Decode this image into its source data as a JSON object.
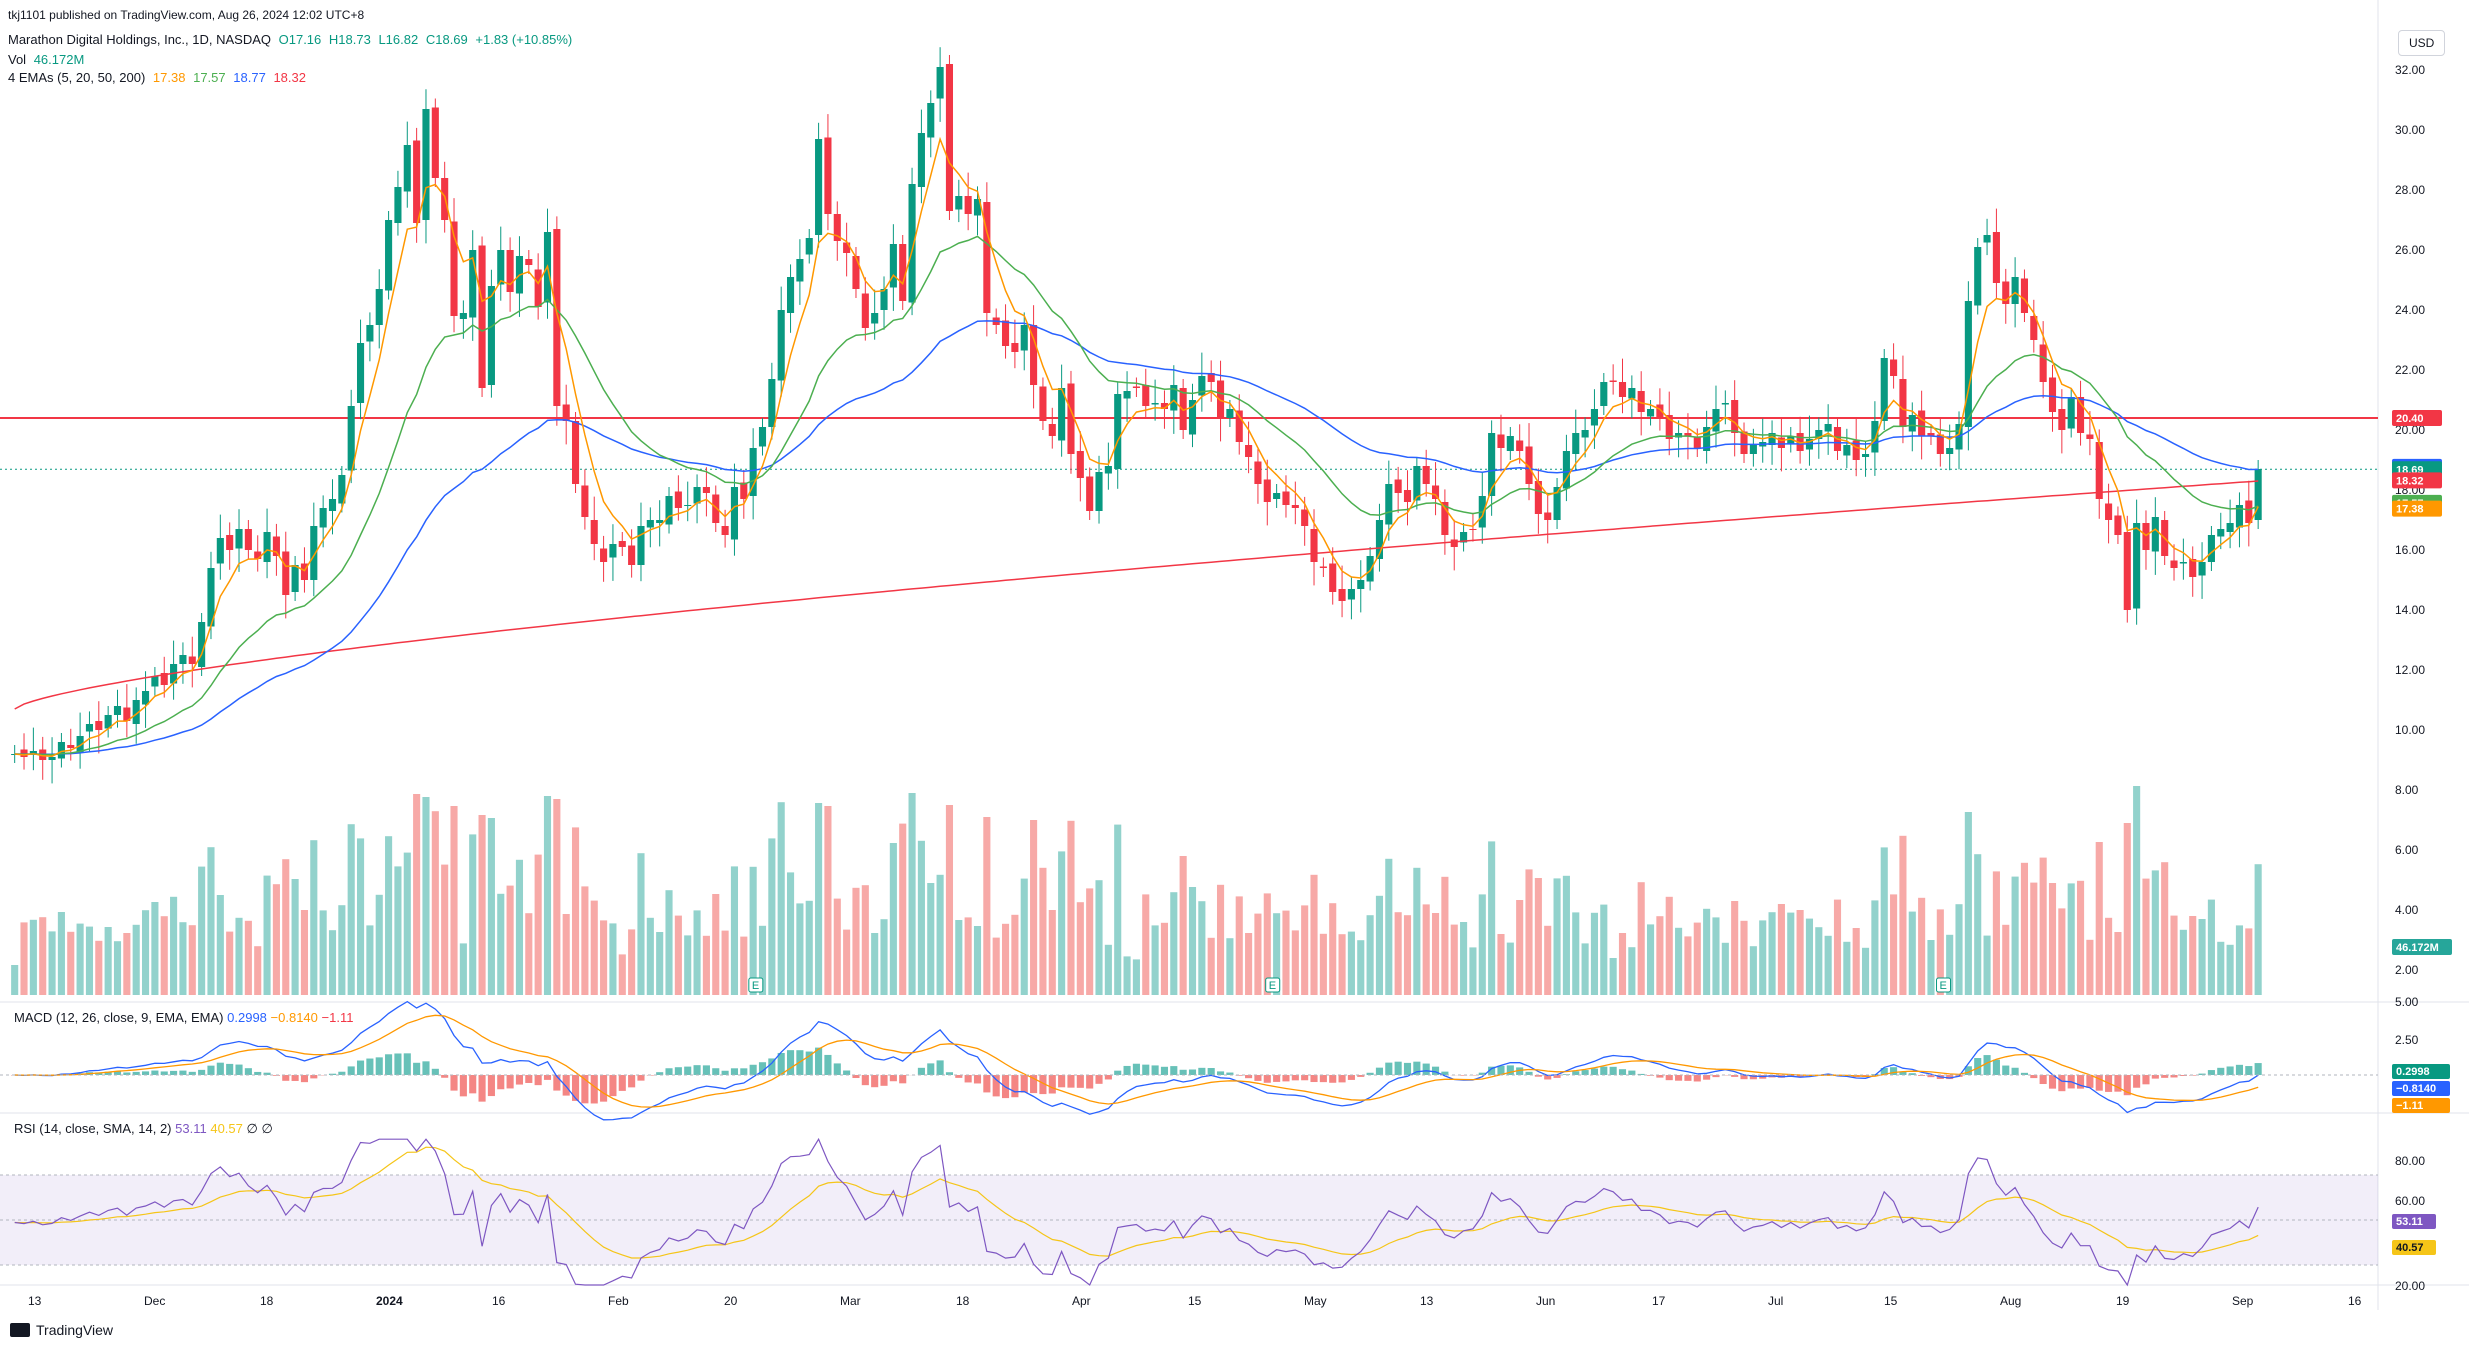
{
  "publish_line": "tkj1101 published on TradingView.com, Aug 26, 2024 12:02 UTC+8",
  "legend": {
    "symbol": "Marathon Digital Holdings, Inc., 1D, NASDAQ",
    "open": "O17.16",
    "high": "H18.73",
    "low": "L16.82",
    "close": "C18.69",
    "change": "+1.83 (+10.85%)",
    "vol_label": "Vol",
    "vol_value": "46.172M",
    "ema_label": "4 EMAs (5, 20, 50, 200)",
    "ema_values": [
      "17.38",
      "17.57",
      "18.77",
      "18.32"
    ]
  },
  "macd": {
    "label": "MACD (12, 26, close, 9, EMA, EMA)",
    "values": [
      "0.2998",
      "−0.8140",
      "−1.11"
    ]
  },
  "rsi": {
    "label": "RSI (14, close, SMA, 14, 2)",
    "values": [
      "53.11",
      "40.57",
      "∅",
      "∅"
    ]
  },
  "currency": "USD",
  "footer": "TradingView",
  "colors": {
    "up": "#089981",
    "down": "#f23645",
    "ema5": "#ff9800",
    "ema20": "#4caf50",
    "ema50": "#2962ff",
    "ema200": "#f23645",
    "rsi": "#7e57c2",
    "rsi_ma": "#f5c518"
  },
  "chart_data": {
    "type": "candlestick",
    "price_axis": {
      "ticks": [
        "32.00",
        "30.00",
        "28.00",
        "26.00",
        "24.00",
        "22.00",
        "20.00",
        "18.00",
        "16.00",
        "14.00",
        "12.00",
        "10.00",
        "8.00",
        "6.00",
        "4.00",
        "2.00"
      ],
      "range": [
        1,
        33
      ]
    },
    "time_axis": {
      "labels": [
        "13",
        "Dec",
        "18",
        "2024",
        "16",
        "Feb",
        "20",
        "Mar",
        "18",
        "Apr",
        "15",
        "May",
        "13",
        "Jun",
        "17",
        "Jul",
        "15",
        "Aug",
        "19",
        "Sep",
        "16"
      ]
    },
    "horizontal_line": {
      "price": 20.4,
      "label": "20.40"
    },
    "last_price_line": 18.69,
    "price_labels": [
      {
        "text": "20.40",
        "value": 20.4,
        "color": "#f23645"
      },
      {
        "text": "18.77",
        "value": 18.77,
        "color": "#2962ff"
      },
      {
        "text": "18.69",
        "value": 18.69,
        "color": "#089981"
      },
      {
        "text": "18.32",
        "value": 18.32,
        "color": "#f23645"
      },
      {
        "text": "17.57",
        "value": 17.57,
        "color": "#4caf50"
      },
      {
        "text": "17.38",
        "value": 17.38,
        "color": "#ff9800"
      }
    ],
    "volume_label": "46.172M",
    "earnings_markers": [
      "E",
      "E",
      "E"
    ],
    "price_closes": [
      9.2,
      9.1,
      9.3,
      9.0,
      9.1,
      9.6,
      9.4,
      9.8,
      10.2,
      10.0,
      10.5,
      10.8,
      10.3,
      11.0,
      11.3,
      11.8,
      11.5,
      12.2,
      12.5,
      12.2,
      13.6,
      15.4,
      16.4,
      16.0,
      16.7,
      16.0,
      15.7,
      16.6,
      15.8,
      14.5,
      15.5,
      15.0,
      16.8,
      17.4,
      17.7,
      18.5,
      20.8,
      22.9,
      23.5,
      24.7,
      27.0,
      28.1,
      29.5,
      26.9,
      30.7,
      28.4,
      27.0,
      23.8,
      23.9,
      26.0,
      21.4,
      24.8,
      26.0,
      24.6,
      25.8,
      25.5,
      24.1,
      26.6,
      20.8,
      20.3,
      18.2,
      17.1,
      16.2,
      15.6,
      16.2,
      16.1,
      15.5,
      16.8,
      17.0,
      17.0,
      17.8,
      17.4,
      17.5,
      18.1,
      17.9,
      16.9,
      16.5,
      18.1,
      17.7,
      19.4,
      20.1,
      21.7,
      24.0,
      25.1,
      25.7,
      26.4,
      29.7,
      27.2,
      26.3,
      25.9,
      24.7,
      23.4,
      23.9,
      24.7,
      26.2,
      24.3,
      28.2,
      29.9,
      30.9,
      32.1,
      27.3,
      27.8,
      27.2,
      27.7,
      23.9,
      23.5,
      22.8,
      22.6,
      23.5,
      21.5,
      20.3,
      19.8,
      21.4,
      19.2,
      18.4,
      17.3,
      18.6,
      18.8,
      21.2,
      21.3,
      21.4,
      20.8,
      20.9,
      20.7,
      21.5,
      20.0,
      21.0,
      21.8,
      21.6,
      20.4,
      20.7,
      19.6,
      19.1,
      18.2,
      17.6,
      17.9,
      17.5,
      17.4,
      16.8,
      15.6,
      15.4,
      14.6,
      14.3,
      14.7,
      15.0,
      15.8,
      17.0,
      18.2,
      17.9,
      17.6,
      18.8,
      18.2,
      17.7,
      16.5,
      16.1,
      16.6,
      16.7,
      17.8,
      19.9,
      19.4,
      19.8,
      19.3,
      18.2,
      17.2,
      17.0,
      18.1,
      19.3,
      19.9,
      20.0,
      20.7,
      21.6,
      21.6,
      21.1,
      21.4,
      20.6,
      20.7,
      20.4,
      19.7,
      19.9,
      19.8,
      19.4,
      20.1,
      20.7,
      20.9,
      19.9,
      19.2,
      19.5,
      19.6,
      19.9,
      19.4,
      19.8,
      19.3,
      19.7,
      20.0,
      20.2,
      19.3,
      19.5,
      19.0,
      19.2,
      20.3,
      22.4,
      21.8,
      20.1,
      20.5,
      19.8,
      19.8,
      19.2,
      19.4,
      20.2,
      24.3,
      26.1,
      26.5,
      24.9,
      24.2,
      25.1,
      23.9,
      23.0,
      21.6,
      20.6,
      20.0,
      21.1,
      19.9,
      19.7,
      17.7,
      17.0,
      16.5,
      14.0,
      16.9,
      16.0,
      17.1,
      15.8,
      15.4,
      15.6,
      15.1,
      15.6,
      16.5,
      16.7,
      16.9,
      17.5,
      16.9,
      18.7
    ],
    "emas": {
      "ema5": "17.38",
      "ema20": "17.57",
      "ema50": "18.77",
      "ema200": "18.32"
    },
    "macd_axis": [
      "5.00",
      "2.50"
    ],
    "macd_labels": [
      "0.2998",
      "−0.8140",
      "−1.11"
    ],
    "rsi_axis": [
      "80.00",
      "60.00",
      "20.00"
    ],
    "rsi_labels": [
      "53.11",
      "40.57"
    ]
  }
}
